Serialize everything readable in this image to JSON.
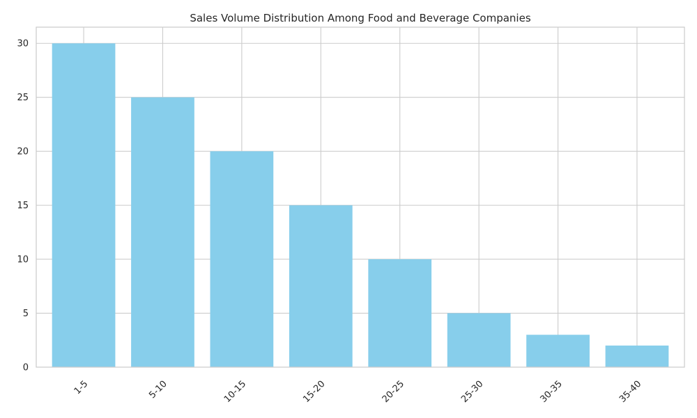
{
  "chart_data": {
    "type": "bar",
    "title": "Sales Volume Distribution Among Food and Beverage Companies",
    "xlabel": "",
    "ylabel": "",
    "categories": [
      "1-5",
      "5-10",
      "10-15",
      "15-20",
      "20-25",
      "25-30",
      "30-35",
      "35-40"
    ],
    "values": [
      30,
      25,
      20,
      15,
      10,
      5,
      3,
      2
    ],
    "ylim": [
      0,
      31.5
    ],
    "yticks": [
      0,
      5,
      10,
      15,
      20,
      25,
      30
    ],
    "grid": true,
    "legend": "none",
    "colors": {
      "bar": "#87ceeb",
      "grid": "#cccccc",
      "spine": "#cccccc",
      "text": "#262626"
    }
  }
}
